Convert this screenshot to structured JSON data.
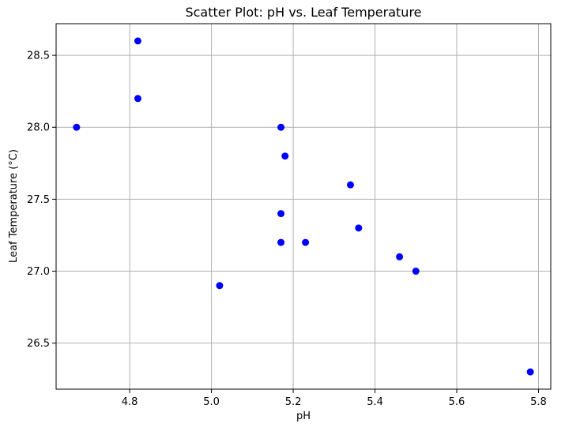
{
  "chart_data": {
    "type": "scatter",
    "title": "Scatter Plot: pH vs. Leaf Temperature",
    "xlabel": "pH",
    "ylabel": "Leaf Temperature (°C)",
    "xlim": [
      4.62,
      5.83
    ],
    "ylim": [
      26.18,
      28.72
    ],
    "xticks": [
      4.8,
      5.0,
      5.2,
      5.4,
      5.6,
      5.8
    ],
    "xtick_labels": [
      "4.8",
      "5.0",
      "5.2",
      "5.4",
      "5.6",
      "5.8"
    ],
    "yticks": [
      26.5,
      27.0,
      27.5,
      28.0,
      28.5
    ],
    "ytick_labels": [
      "26.5",
      "27.0",
      "27.5",
      "28.0",
      "28.5"
    ],
    "grid": true,
    "color": "#0000ff",
    "points": [
      {
        "x": 4.67,
        "y": 28.0
      },
      {
        "x": 4.82,
        "y": 28.6
      },
      {
        "x": 4.82,
        "y": 28.2
      },
      {
        "x": 5.02,
        "y": 26.9
      },
      {
        "x": 5.17,
        "y": 28.0
      },
      {
        "x": 5.18,
        "y": 27.8
      },
      {
        "x": 5.17,
        "y": 27.4
      },
      {
        "x": 5.17,
        "y": 27.2
      },
      {
        "x": 5.23,
        "y": 27.2
      },
      {
        "x": 5.34,
        "y": 27.6
      },
      {
        "x": 5.36,
        "y": 27.3
      },
      {
        "x": 5.46,
        "y": 27.1
      },
      {
        "x": 5.5,
        "y": 27.0
      },
      {
        "x": 5.78,
        "y": 26.3
      }
    ]
  }
}
